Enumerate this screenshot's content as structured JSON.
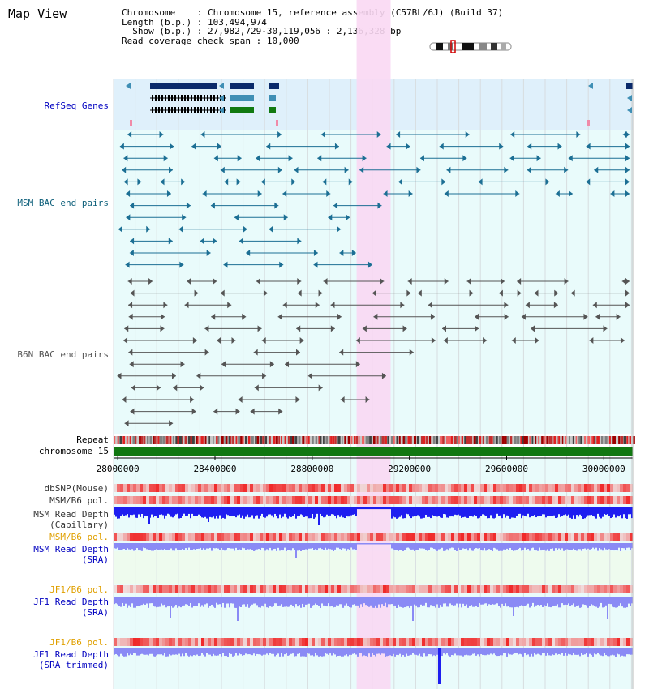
{
  "title": "Map View",
  "info": {
    "chromosome_label": "Chromosome",
    "chromosome_value": "Chromosome 15, reference assembly (C57BL/6J) (Build 37)",
    "length_label": "Length (b.p.)",
    "length_value": "103,494,974",
    "show_label": "Show (b.p.)",
    "show_value": "27,982,729-30,119,056 : 2,136,328 bp",
    "coverage_label": "Read coverage check span",
    "coverage_value": "10,000"
  },
  "view": {
    "start": 27982729,
    "end": 30119056,
    "highlight": [
      28982729,
      29122729
    ]
  },
  "axis": {
    "ticks": [
      "28000000",
      "28400000",
      "28800000",
      "29200000",
      "29600000",
      "30000000"
    ]
  },
  "tracks": {
    "refseq": "RefSeq Genes",
    "msm_bac": "MSM BAC end pairs",
    "b6n_bac": "B6N BAC end pairs",
    "repeat": "Repeat",
    "chromosome": "chromosome 15",
    "dbsnp": "dbSNP(Mouse)",
    "msm_b6_pol": "MSM/B6 pol.",
    "msm_read_depth_cap_1": "MSM Read Depth",
    "msm_read_depth_cap_2": "(Capillary)",
    "msm_b6_pol_sra": "MSM/B6 pol.",
    "msm_read_depth_sra_1": "MSM Read Depth",
    "msm_read_depth_sra_2": "(SRA)",
    "jf1_b6_pol": "JF1/B6 pol.",
    "jf1_read_depth_sra_1": "JF1 Read Depth",
    "jf1_read_depth_sra_2": "(SRA)",
    "jf1_b6_pol_trim": "JF1/B6 pol.",
    "jf1_read_depth_trim_1": "JF1 Read Depth",
    "jf1_read_depth_trim_2": "(SRA trimmed)"
  },
  "colors": {
    "refseq_bg": "#dff0fb",
    "bac_bg": "#e9fbfb",
    "highlight": "#f9d8f3",
    "gene_dark": "#0b2a6b",
    "gene_mid": "#3f8fb5",
    "gene_green": "#117a11",
    "msm_bac": "#1c6f94",
    "b6n_bac": "#555555",
    "chromosome": "#117711",
    "depth_dark": "#1e1ef0",
    "depth_light": "#8a8af5",
    "label_blue": "#0000c0",
    "label_teal": "#0d5f7a",
    "label_orange": "#e0a000",
    "label_dark": "#333333"
  }
}
